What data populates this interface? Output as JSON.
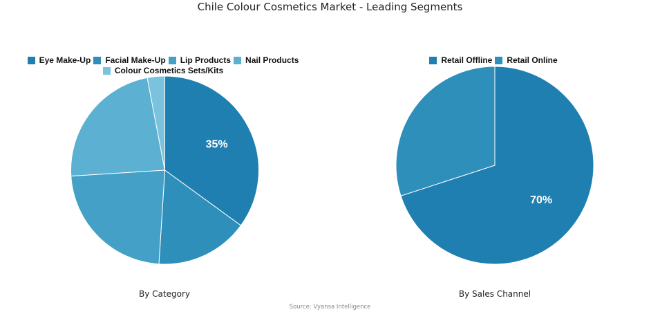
{
  "title": "Chile Colour Cosmetics Market - Leading Segments",
  "source": "Source: Vyansa Intelligence",
  "chart_data": [
    {
      "type": "pie",
      "title": "By Category",
      "categories": [
        "Eye Make-Up",
        "Facial Make-Up",
        "Lip Products",
        "Nail Products",
        "Colour Cosmetics Sets/Kits"
      ],
      "values": [
        35,
        16,
        23,
        23,
        3
      ],
      "colors": [
        "#1f7fb0",
        "#2e8fbb",
        "#45a0c7",
        "#5cb0d1",
        "#7bc3dc"
      ],
      "data_labels": [
        "35%",
        "",
        "",
        "",
        ""
      ],
      "legend_position": "top",
      "start_angle": "12 o'clock, clockwise"
    },
    {
      "type": "pie",
      "title": "By Sales Channel",
      "categories": [
        "Retail Offline",
        "Retail Online"
      ],
      "values": [
        70,
        30
      ],
      "colors": [
        "#1f7fb0",
        "#2e8fbb"
      ],
      "data_labels": [
        "70%",
        ""
      ],
      "legend_position": "top",
      "start_angle": "12 o'clock, clockwise"
    }
  ],
  "legends": {
    "category": {
      "row1": [
        "Eye Make-Up",
        "Facial Make-Up",
        "Lip Products",
        "Nail Products"
      ],
      "row2": [
        "Colour Cosmetics Sets/Kits"
      ]
    },
    "channel": {
      "row1": [
        "Retail Offline",
        "Retail Online"
      ]
    }
  }
}
